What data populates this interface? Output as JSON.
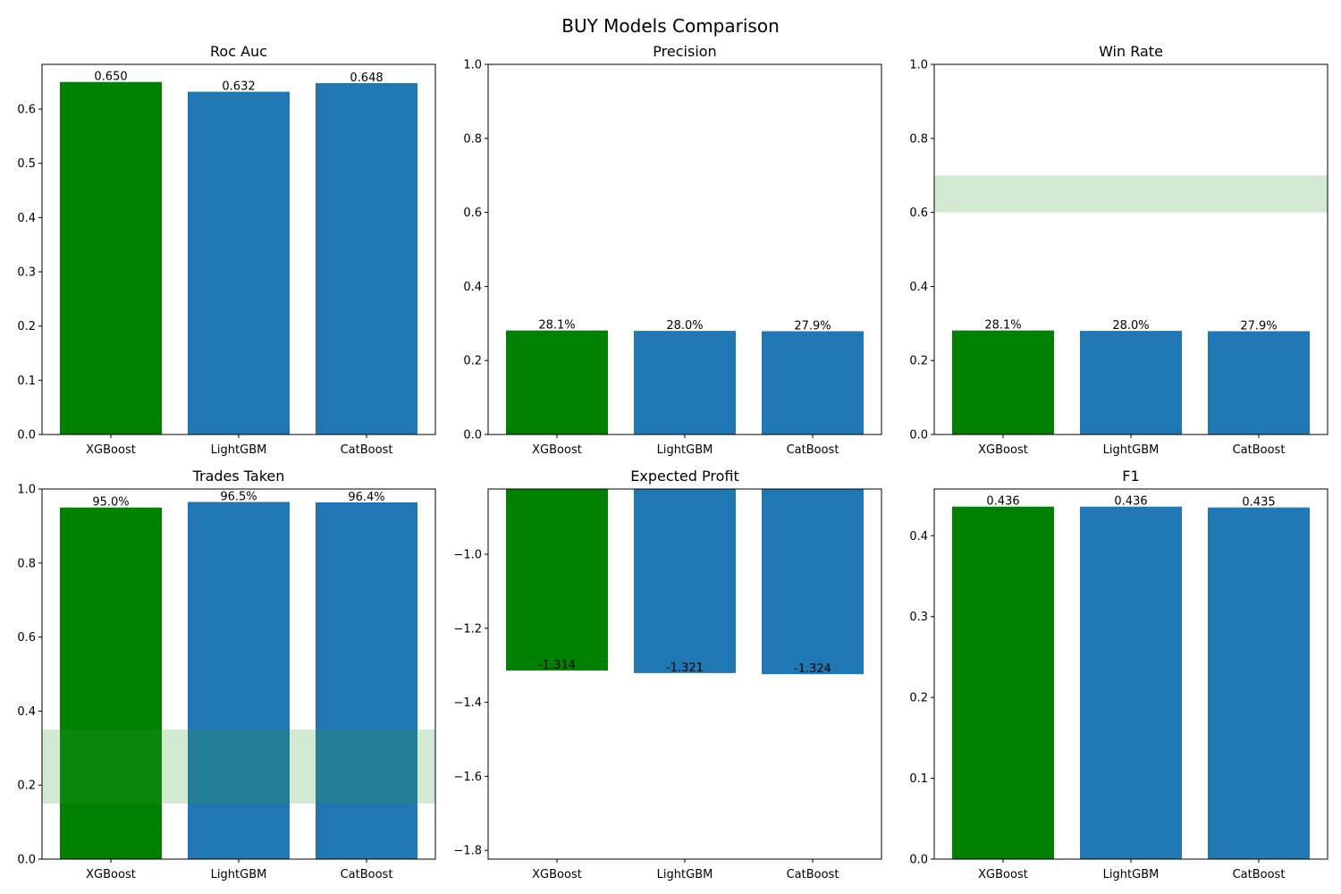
{
  "figure": {
    "title": "BUY Models Comparison"
  },
  "colors": {
    "best": "#008000",
    "other": "#1f77b4",
    "band": "#2ca02c"
  },
  "chart_data": [
    {
      "type": "bar",
      "title": "Roc Auc",
      "categories": [
        "XGBoost",
        "LightGBM",
        "CatBoost"
      ],
      "values": [
        0.65,
        0.632,
        0.648
      ],
      "labels": [
        "0.650",
        "0.632",
        "0.648"
      ],
      "bar_colors": [
        "best",
        "other",
        "other"
      ],
      "ylim": [
        0,
        0.6825
      ],
      "yticks": [
        0,
        0.1,
        0.2,
        0.3,
        0.4,
        0.5,
        0.6
      ],
      "ytick_labels": [
        "0.0",
        "0.1",
        "0.2",
        "0.3",
        "0.4",
        "0.5",
        "0.6"
      ],
      "band": null
    },
    {
      "type": "bar",
      "title": "Precision",
      "categories": [
        "XGBoost",
        "LightGBM",
        "CatBoost"
      ],
      "values": [
        0.281,
        0.28,
        0.279
      ],
      "labels": [
        "28.1%",
        "28.0%",
        "27.9%"
      ],
      "bar_colors": [
        "best",
        "other",
        "other"
      ],
      "ylim": [
        0,
        1.0
      ],
      "yticks": [
        0,
        0.2,
        0.4,
        0.6,
        0.8,
        1.0
      ],
      "ytick_labels": [
        "0.0",
        "0.2",
        "0.4",
        "0.6",
        "0.8",
        "1.0"
      ],
      "band": null
    },
    {
      "type": "bar",
      "title": "Win Rate",
      "categories": [
        "XGBoost",
        "LightGBM",
        "CatBoost"
      ],
      "values": [
        0.281,
        0.28,
        0.279
      ],
      "labels": [
        "28.1%",
        "28.0%",
        "27.9%"
      ],
      "bar_colors": [
        "best",
        "other",
        "other"
      ],
      "ylim": [
        0,
        1.0
      ],
      "yticks": [
        0,
        0.2,
        0.4,
        0.6,
        0.8,
        1.0
      ],
      "ytick_labels": [
        "0.0",
        "0.2",
        "0.4",
        "0.6",
        "0.8",
        "1.0"
      ],
      "band": [
        0.6,
        0.7
      ]
    },
    {
      "type": "bar",
      "title": "Trades Taken",
      "categories": [
        "XGBoost",
        "LightGBM",
        "CatBoost"
      ],
      "values": [
        0.95,
        0.965,
        0.964
      ],
      "labels": [
        "95.0%",
        "96.5%",
        "96.4%"
      ],
      "bar_colors": [
        "best",
        "other",
        "other"
      ],
      "ylim": [
        0,
        1.0
      ],
      "yticks": [
        0,
        0.2,
        0.4,
        0.6,
        0.8,
        1.0
      ],
      "ytick_labels": [
        "0.0",
        "0.2",
        "0.4",
        "0.6",
        "0.8",
        "1.0"
      ],
      "band": [
        0.15,
        0.35
      ]
    },
    {
      "type": "bar",
      "title": "Expected Profit",
      "categories": [
        "XGBoost",
        "LightGBM",
        "CatBoost"
      ],
      "values": [
        -1.314,
        -1.321,
        -1.324
      ],
      "labels": [
        "-1.314",
        "-1.321",
        "-1.324"
      ],
      "bar_colors": [
        "best",
        "other",
        "other"
      ],
      "ylim": [
        -1.8237,
        -0.8237
      ],
      "yticks": [
        -1.8,
        -1.6,
        -1.4,
        -1.2,
        -1.0
      ],
      "ytick_labels": [
        "−1.8",
        "−1.6",
        "−1.4",
        "−1.2",
        "−1.0"
      ],
      "band": null
    },
    {
      "type": "bar",
      "title": "F1",
      "categories": [
        "XGBoost",
        "LightGBM",
        "CatBoost"
      ],
      "values": [
        0.436,
        0.436,
        0.435
      ],
      "labels": [
        "0.436",
        "0.436",
        "0.435"
      ],
      "bar_colors": [
        "best",
        "other",
        "other"
      ],
      "ylim": [
        0,
        0.4578
      ],
      "yticks": [
        0,
        0.1,
        0.2,
        0.3,
        0.4
      ],
      "ytick_labels": [
        "0.0",
        "0.1",
        "0.2",
        "0.3",
        "0.4"
      ],
      "band": null
    }
  ]
}
